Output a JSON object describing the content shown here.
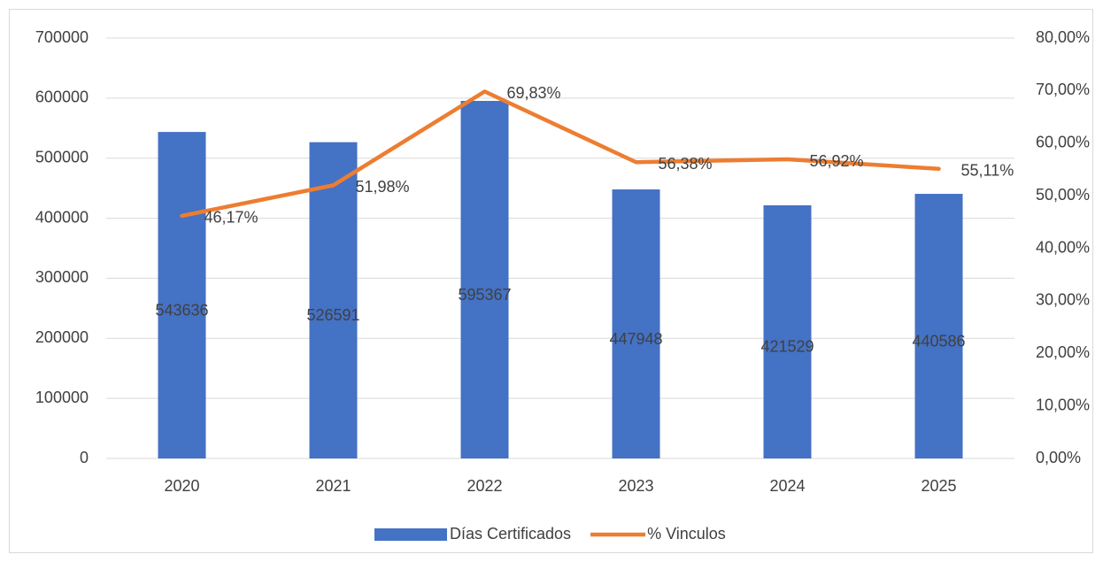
{
  "chart_data": {
    "type": "bar-line",
    "categories": [
      "2020",
      "2021",
      "2022",
      "2023",
      "2024",
      "2025"
    ],
    "series": [
      {
        "name": "Días Certificados",
        "color": "#4472c4",
        "type": "bar",
        "values": [
          543636,
          526591,
          595367,
          447948,
          421529,
          440586
        ]
      },
      {
        "name": "% Vinculos",
        "color": "#ed7d31",
        "type": "line",
        "axis": "y2",
        "values": [
          46.17,
          51.98,
          69.83,
          56.38,
          56.92,
          55.11
        ],
        "value_labels": [
          "46,17%",
          "51,98%",
          "69,83%",
          "56,38%",
          "56,92%",
          "55,11%"
        ]
      }
    ],
    "ylim": [
      0,
      700000
    ],
    "yticks": [
      0,
      100000,
      200000,
      300000,
      400000,
      500000,
      600000,
      700000
    ],
    "y2lim": [
      0,
      80
    ],
    "y2ticks": [
      {
        "value": 0,
        "label": "0,00%"
      },
      {
        "value": 10,
        "label": "10,00%"
      },
      {
        "value": 20,
        "label": "20,00%"
      },
      {
        "value": 30,
        "label": "30,00%"
      },
      {
        "value": 40,
        "label": "40,00%"
      },
      {
        "value": 50,
        "label": "50,00%"
      },
      {
        "value": 60,
        "label": "60,00%"
      },
      {
        "value": 70,
        "label": "70,00%"
      },
      {
        "value": 80,
        "label": "80,00%"
      }
    ],
    "grid": true,
    "legend": "bottom"
  }
}
